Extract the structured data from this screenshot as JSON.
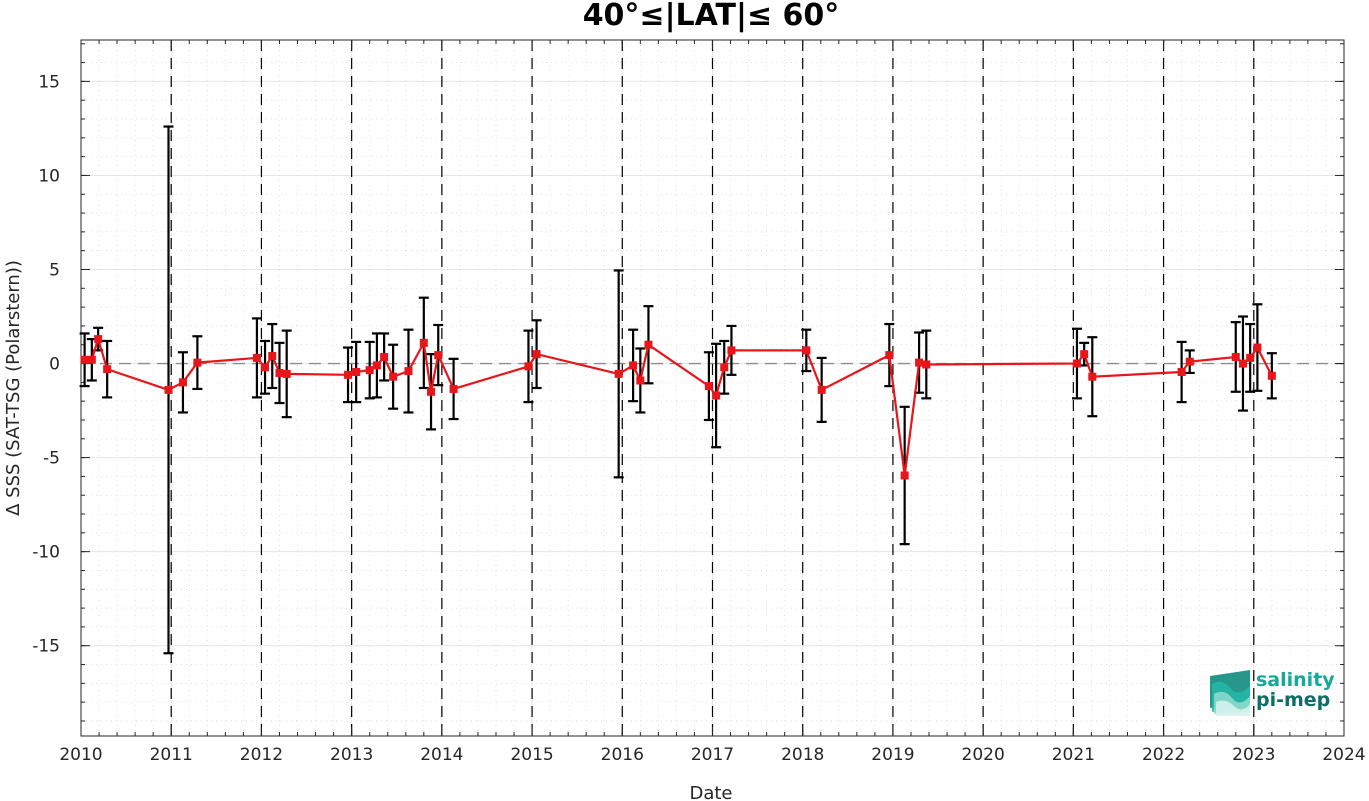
{
  "chart_data": {
    "type": "line",
    "title": "40°≤|LAT|≤ 60°",
    "xlabel": "Date",
    "ylabel": "Δ SSS (SAT-TSG (Polarstern))",
    "xlim": [
      2010,
      2024
    ],
    "ylim": [
      -19.8,
      17.2
    ],
    "xticks": [
      "2010",
      "2011",
      "2012",
      "2013",
      "2014",
      "2015",
      "2016",
      "2017",
      "2018",
      "2019",
      "2020",
      "2021",
      "2022",
      "2023",
      "2024"
    ],
    "yticks": [
      15,
      10,
      5,
      0,
      -5,
      -10,
      -15
    ],
    "ytick_labels": [
      "15",
      "10",
      "5",
      "0",
      "-5",
      "-10",
      "-15"
    ],
    "grid": true,
    "minor_grid": true,
    "zero_line": 0,
    "year_markers": [
      2011,
      2012,
      2013,
      2014,
      2015,
      2016,
      2017,
      2018,
      2019,
      2020,
      2021,
      2022,
      2023
    ],
    "series": [
      {
        "marker": "square",
        "color": "#e8161b",
        "errorbar_color": "#000000",
        "points": [
          {
            "x": 2010.04,
            "y": 0.2,
            "err": 1.4
          },
          {
            "x": 2010.12,
            "y": 0.2,
            "err": 1.1
          },
          {
            "x": 2010.19,
            "y": 1.3,
            "err": 0.6
          },
          {
            "x": 2010.29,
            "y": -0.3,
            "err": 1.5
          },
          {
            "x": 2010.97,
            "y": -1.4,
            "err": 14.0
          },
          {
            "x": 2011.13,
            "y": -1.0,
            "err": 1.6
          },
          {
            "x": 2011.29,
            "y": 0.05,
            "err": 1.4
          },
          {
            "x": 2011.95,
            "y": 0.3,
            "err": 2.1
          },
          {
            "x": 2012.04,
            "y": -0.2,
            "err": 1.4
          },
          {
            "x": 2012.12,
            "y": 0.4,
            "err": 1.7
          },
          {
            "x": 2012.2,
            "y": -0.5,
            "err": 1.6
          },
          {
            "x": 2012.28,
            "y": -0.55,
            "err": 2.3
          },
          {
            "x": 2012.96,
            "y": -0.6,
            "err": 1.45
          },
          {
            "x": 2013.05,
            "y": -0.45,
            "err": 1.6
          },
          {
            "x": 2013.2,
            "y": -0.35,
            "err": 1.5
          },
          {
            "x": 2013.28,
            "y": -0.1,
            "err": 1.7
          },
          {
            "x": 2013.36,
            "y": 0.35,
            "err": 1.25
          },
          {
            "x": 2013.46,
            "y": -0.7,
            "err": 1.7
          },
          {
            "x": 2013.63,
            "y": -0.4,
            "err": 2.2
          },
          {
            "x": 2013.8,
            "y": 1.1,
            "err": 2.4
          },
          {
            "x": 2013.88,
            "y": -1.5,
            "err": 2.0
          },
          {
            "x": 2013.96,
            "y": 0.45,
            "err": 1.6
          },
          {
            "x": 2014.13,
            "y": -1.35,
            "err": 1.6
          },
          {
            "x": 2014.96,
            "y": -0.15,
            "err": 1.9
          },
          {
            "x": 2015.05,
            "y": 0.5,
            "err": 1.8
          },
          {
            "x": 2015.96,
            "y": -0.55,
            "err": 5.5
          },
          {
            "x": 2016.12,
            "y": -0.1,
            "err": 1.9
          },
          {
            "x": 2016.2,
            "y": -0.9,
            "err": 1.7
          },
          {
            "x": 2016.29,
            "y": 1.0,
            "err": 2.05
          },
          {
            "x": 2016.96,
            "y": -1.2,
            "err": 1.8
          },
          {
            "x": 2017.04,
            "y": -1.7,
            "err": 2.75
          },
          {
            "x": 2017.13,
            "y": -0.2,
            "err": 1.4
          },
          {
            "x": 2017.21,
            "y": 0.7,
            "err": 1.3
          },
          {
            "x": 2018.04,
            "y": 0.7,
            "err": 1.1
          },
          {
            "x": 2018.21,
            "y": -1.4,
            "err": 1.7
          },
          {
            "x": 2018.96,
            "y": 0.45,
            "err": 1.65
          },
          {
            "x": 2019.13,
            "y": -5.95,
            "err": 3.65
          },
          {
            "x": 2019.29,
            "y": 0.05,
            "err": 1.6
          },
          {
            "x": 2019.37,
            "y": -0.05,
            "err": 1.8
          },
          {
            "x": 2021.04,
            "y": 0.0,
            "err": 1.85
          },
          {
            "x": 2021.12,
            "y": 0.5,
            "err": 0.6
          },
          {
            "x": 2021.21,
            "y": -0.7,
            "err": 2.1
          },
          {
            "x": 2022.2,
            "y": -0.45,
            "err": 1.6
          },
          {
            "x": 2022.29,
            "y": 0.1,
            "err": 0.6
          },
          {
            "x": 2022.8,
            "y": 0.35,
            "err": 1.85
          },
          {
            "x": 2022.88,
            "y": 0.0,
            "err": 2.5
          },
          {
            "x": 2022.96,
            "y": 0.3,
            "err": 1.8
          },
          {
            "x": 2023.04,
            "y": 0.85,
            "err": 2.3
          },
          {
            "x": 2023.2,
            "y": -0.65,
            "err": 1.2
          }
        ]
      }
    ]
  },
  "logo": {
    "line1": "salinity",
    "line2": "pi-mep",
    "color1": "#16a99a",
    "color2": "#0e6d66"
  }
}
